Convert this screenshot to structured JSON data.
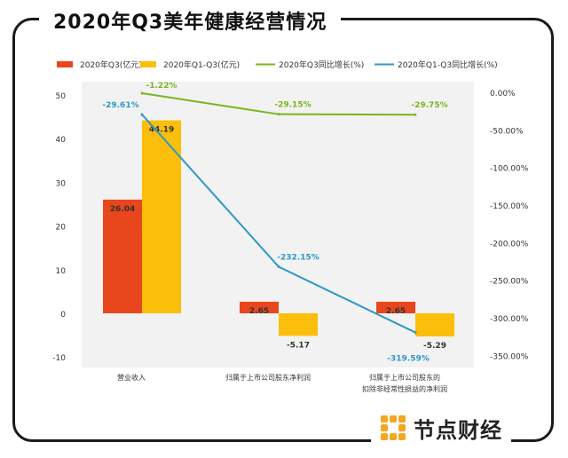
{
  "chart_data": {
    "type": "bar+line",
    "title": "2020年Q3美年健康经营情况",
    "categories": [
      "营业收入",
      "归属于上市公司股东净利润",
      "归属于上市公司股东的扣除非经常性损益的净利润"
    ],
    "category_lines": [
      [
        "营业收入"
      ],
      [
        "归属于上市公司股东净利润"
      ],
      [
        "归属于上市公司股东的",
        "扣除非经常性损益的净利润"
      ]
    ],
    "bar_series": [
      {
        "name": "2020年Q3(亿元)",
        "color": "#e8461c",
        "values": [
          26.04,
          2.65,
          2.65
        ],
        "labels": [
          "26.04",
          "2.65",
          "2.65"
        ]
      },
      {
        "name": "2020年Q1-Q3(亿元)",
        "color": "#fbbe0a",
        "values": [
          44.19,
          -5.17,
          -5.29
        ],
        "labels": [
          "44.19",
          "-5.17",
          "-5.29"
        ]
      }
    ],
    "line_series": [
      {
        "name": "2020年Q3同比增长(%)",
        "color": "#7ab51d",
        "values": [
          -1.22,
          -29.15,
          -29.75
        ],
        "labels": [
          "-1.22%",
          "-29.15%",
          "-29.75%"
        ]
      },
      {
        "name": "2020年Q1-Q3同比增长(%)",
        "color": "#2f98c6",
        "values": [
          -29.61,
          -232.15,
          -319.59
        ],
        "labels": [
          "-29.61%",
          "-232.15%",
          "-319.59%"
        ]
      }
    ],
    "y_left": {
      "min": -10,
      "max": 50,
      "ticks": [
        "50",
        "40",
        "30",
        "20",
        "10",
        "0",
        "-10"
      ],
      "tick_values": [
        50,
        40,
        30,
        20,
        10,
        0,
        -10
      ]
    },
    "y_right": {
      "min": -350,
      "max": 0,
      "ticks": [
        "0.00%",
        "-50.00%",
        "-100.00%",
        "-150.00%",
        "-200.00%",
        "-250.00%",
        "-300.00%",
        "-350.00%"
      ],
      "tick_values": [
        0,
        -50,
        -100,
        -150,
        -200,
        -250,
        -300,
        -350
      ]
    },
    "legend_position": "top"
  },
  "brand": {
    "name": "节点财经",
    "watermark": "节点财经"
  },
  "colors": {
    "background": "#ffffff",
    "plot_bg": "#f2f2f2",
    "frame": "#1a1a1a"
  }
}
